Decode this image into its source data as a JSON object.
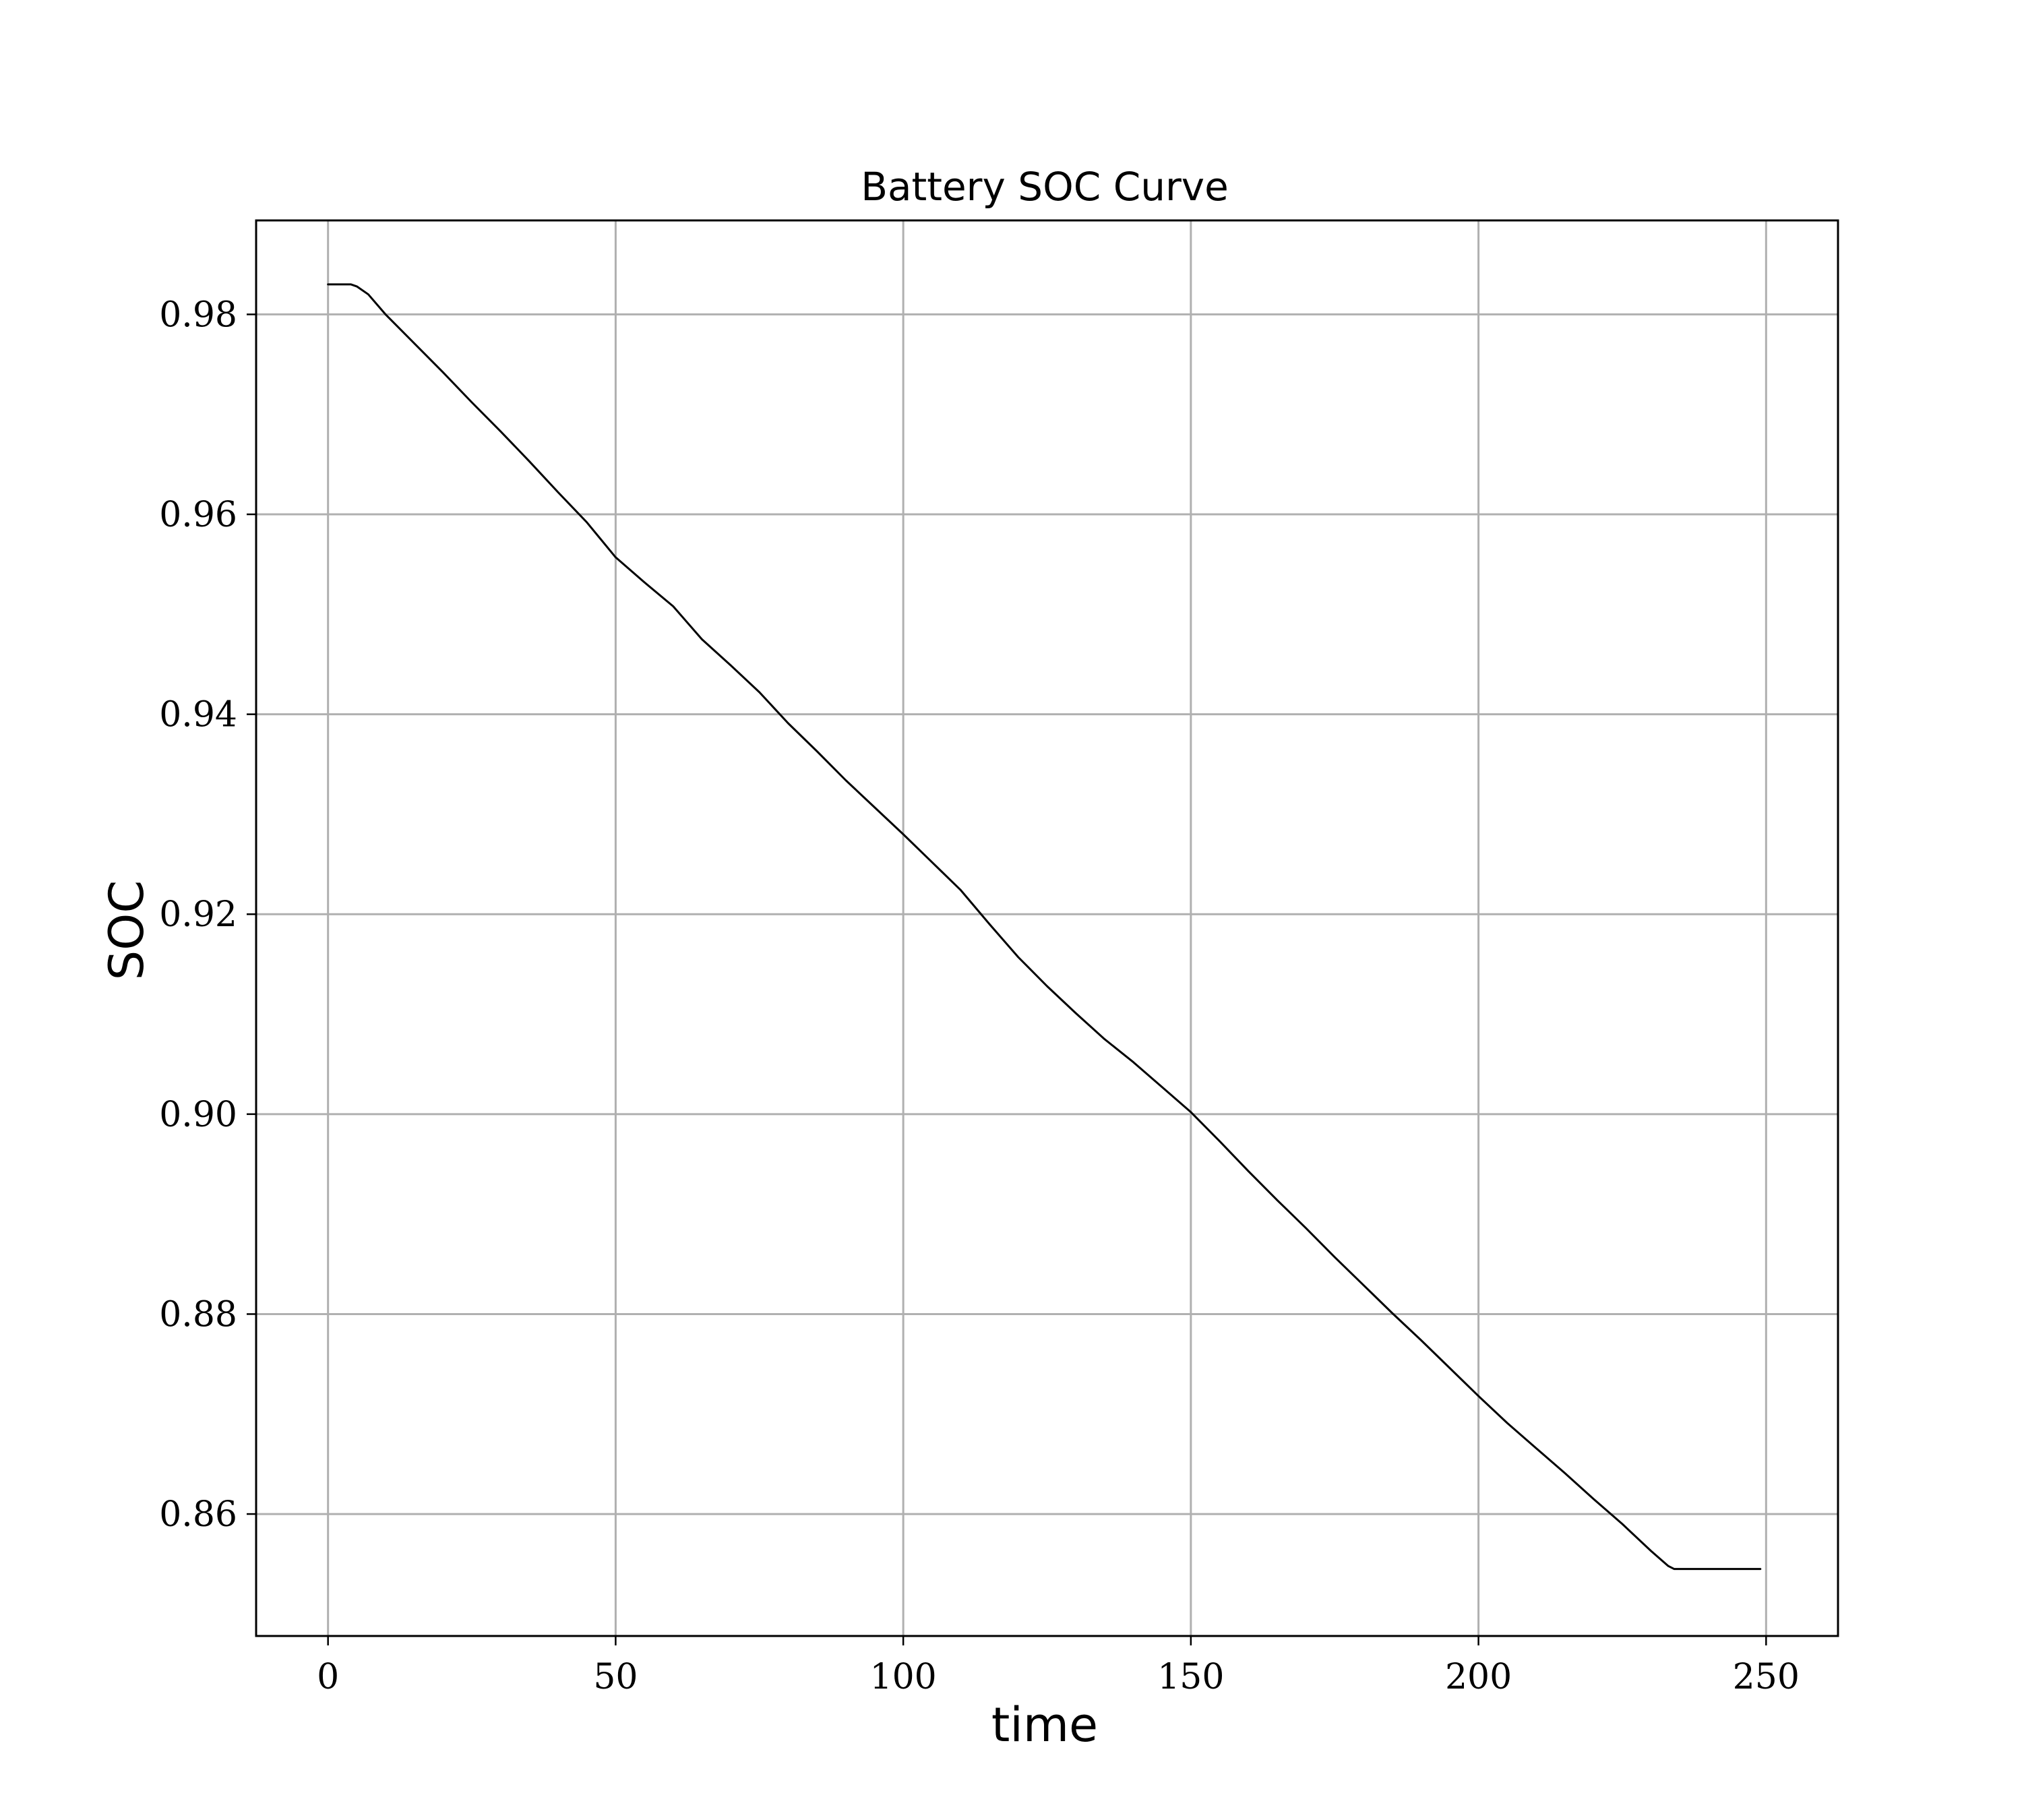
{
  "chart_data": {
    "type": "line",
    "title": "Battery SOC Curve",
    "xlabel": "time",
    "ylabel": "SOC",
    "xlim": [
      -12.5,
      262.5
    ],
    "ylim": [
      0.8478,
      0.9894
    ],
    "x_ticks": [
      0,
      50,
      100,
      150,
      200,
      250
    ],
    "x_tick_labels": [
      "0",
      "50",
      "100",
      "150",
      "200",
      "250"
    ],
    "y_ticks": [
      0.86,
      0.88,
      0.9,
      0.92,
      0.94,
      0.96,
      0.98
    ],
    "y_tick_labels": [
      "0.86",
      "0.88",
      "0.90",
      "0.92",
      "0.94",
      "0.96",
      "0.98"
    ],
    "grid": true,
    "line_color": "#000000",
    "series": [
      {
        "x": [
          0,
          4,
          5,
          7,
          10,
          15,
          20,
          25,
          30,
          35,
          40,
          45,
          50,
          55,
          60,
          65,
          70,
          75,
          80,
          85,
          90,
          95,
          100,
          105,
          110,
          115,
          120,
          125,
          130,
          135,
          140,
          145,
          150,
          155,
          160,
          165,
          170,
          175,
          180,
          185,
          190,
          195,
          200,
          205,
          210,
          215,
          220,
          225,
          230,
          233,
          234,
          236,
          240,
          245,
          249
        ],
        "y": [
          0.983,
          0.983,
          0.9828,
          0.982,
          0.98,
          0.9771,
          0.9742,
          0.9712,
          0.9683,
          0.9653,
          0.9622,
          0.9592,
          0.9557,
          0.9532,
          0.9508,
          0.9475,
          0.9449,
          0.9422,
          0.9391,
          0.9363,
          0.9334,
          0.9307,
          0.928,
          0.9252,
          0.9224,
          0.919,
          0.9157,
          0.9128,
          0.9101,
          0.9075,
          0.9052,
          0.9027,
          0.9002,
          0.8973,
          0.8943,
          0.8914,
          0.8886,
          0.8857,
          0.8829,
          0.8801,
          0.8774,
          0.8746,
          0.8718,
          0.8691,
          0.8666,
          0.8641,
          0.8615,
          0.859,
          0.8563,
          0.8548,
          0.8545,
          0.8545,
          0.8545,
          0.8545,
          0.8545
        ]
      }
    ]
  }
}
